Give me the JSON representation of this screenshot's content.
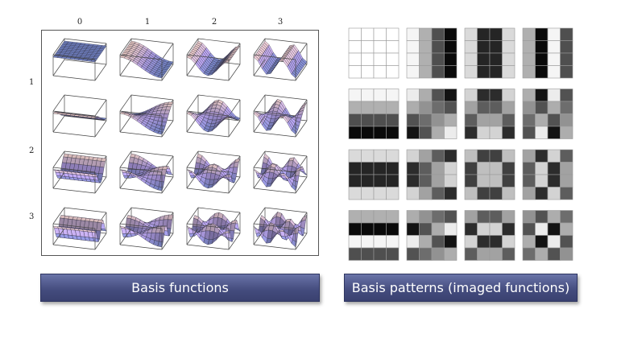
{
  "column_labels": [
    "0",
    "1",
    "2",
    "3"
  ],
  "row_labels": [
    "1",
    "2",
    "3"
  ],
  "captions": {
    "left": "Basis functions",
    "right": "Basis patterns (imaged functions)"
  },
  "colors": {
    "caption_bg": "#434b7d",
    "surface_blue": "#6f7fc0",
    "surface_violet": "#a895d8",
    "surface_pink": "#e8c8c0"
  },
  "basis_grid": {
    "rows": 4,
    "cols": 4,
    "cells_per_pattern": 4
  }
}
